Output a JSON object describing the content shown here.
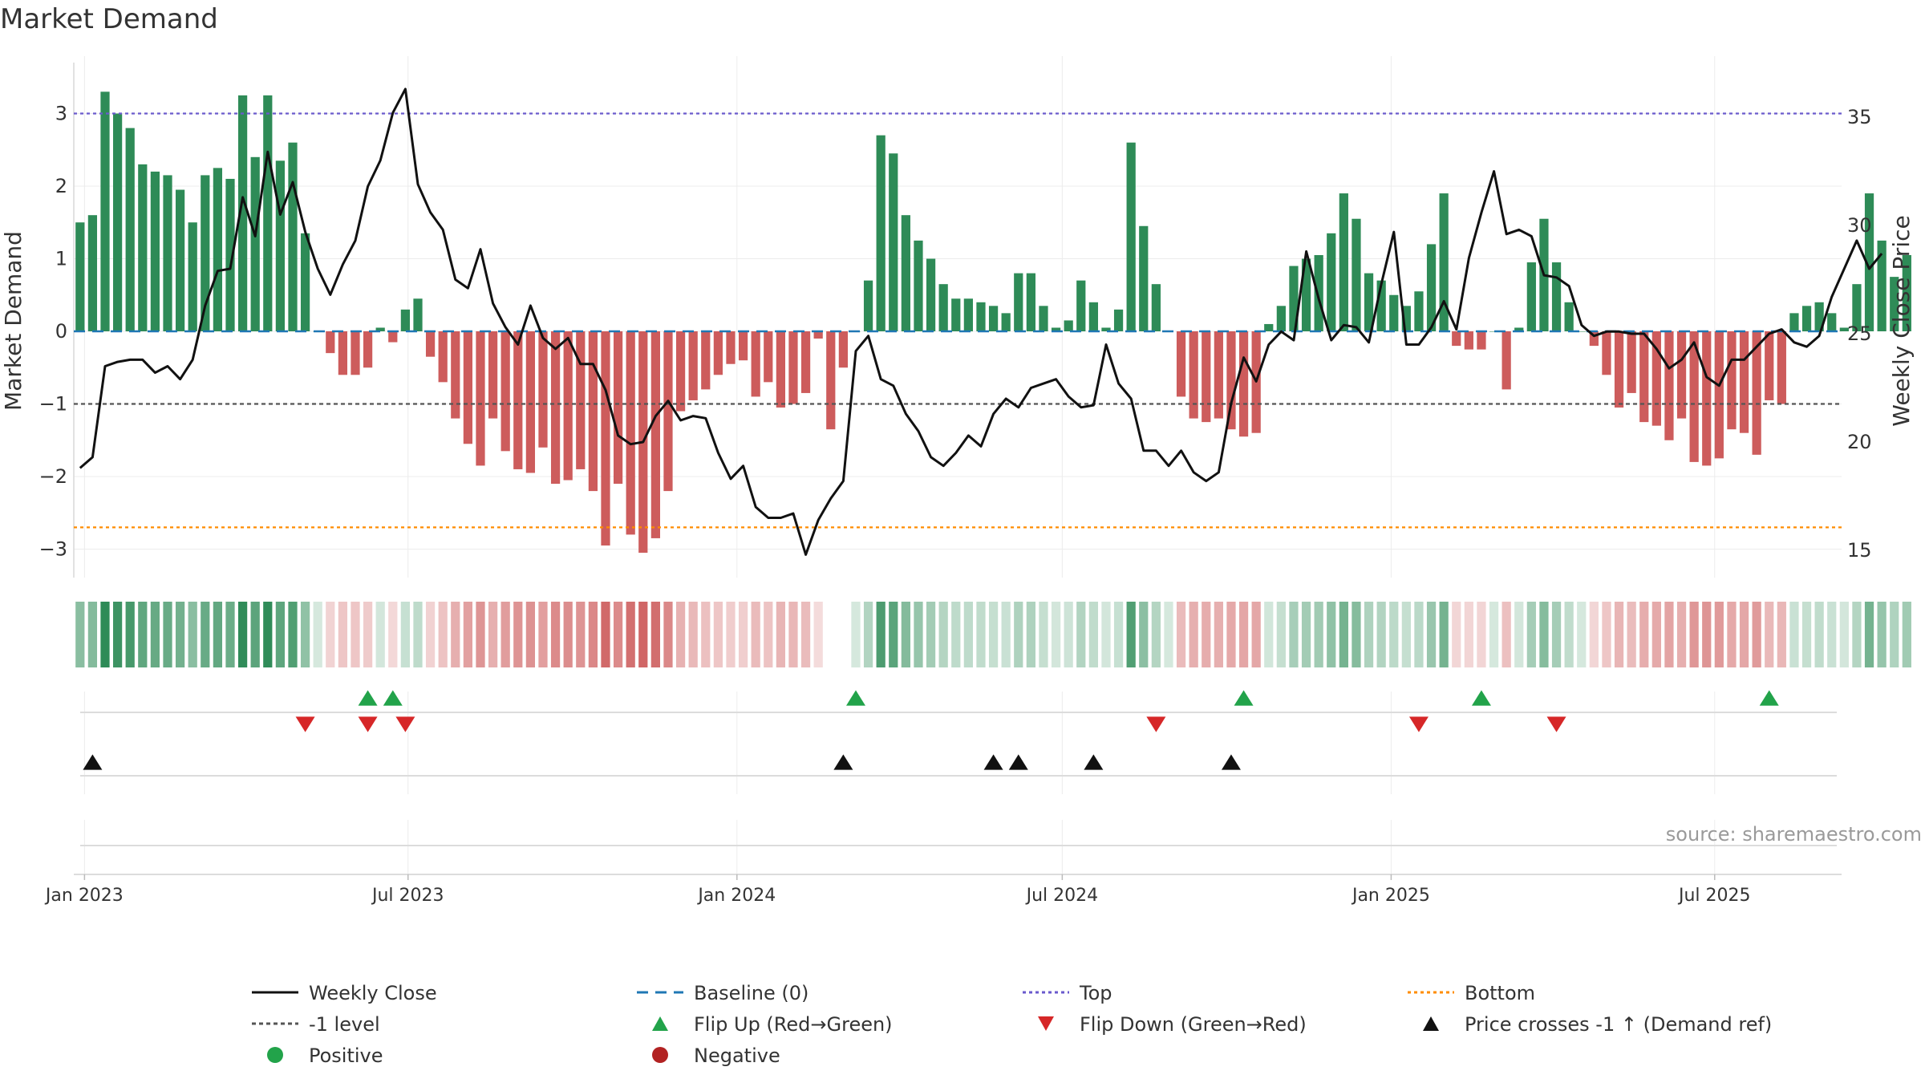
{
  "title": "Market Demand",
  "source": "source: sharemaestro.com",
  "colors": {
    "positive_bar": "#2e8b57",
    "negative_bar": "#cd5c5c",
    "close_line": "#111111",
    "baseline": "#1f77b4",
    "top": "#6a5acd",
    "bottom": "#ff8c00",
    "minus_one": "#555555",
    "flip_up": "#22a34a",
    "flip_down": "#d62728",
    "cross": "#111111",
    "positive_dot": "#22a34a",
    "negative_dot": "#b22222"
  },
  "chart_data": {
    "type": "bar+line",
    "title": "Market Demand",
    "ylabel_left": "Market Demand",
    "ylabel_right": "Weekly Close Price",
    "ylim_left": [
      -3.4,
      3.75
    ],
    "ylim_right": [
      14,
      37
    ],
    "left_ticks": [
      "3",
      "2",
      "1",
      "0",
      "−1",
      "−2",
      "−3"
    ],
    "left_tick_values": [
      3,
      2,
      1,
      0,
      -1,
      -2,
      -3
    ],
    "right_ticks": [
      "35",
      "30",
      "25",
      "20",
      "15"
    ],
    "right_tick_values": [
      35,
      30,
      25,
      20,
      15
    ],
    "x_start": "2022-12-26",
    "x_end": "2025-09-10",
    "x_tick_labels": [
      "Jan 2023",
      "Jul 2023",
      "Jan 2024",
      "Jul 2024",
      "Jan 2025",
      "Jul 2025"
    ],
    "x_tick_dates": [
      "2023-01-01",
      "2023-07-01",
      "2024-01-01",
      "2024-07-01",
      "2025-01-01",
      "2025-07-01"
    ],
    "reference_lines": {
      "top": 3.0,
      "bottom": -2.7,
      "minus_one": -1.0,
      "baseline": 0
    },
    "first_bar_date": "2022-12-26",
    "bar_interval_days": 7,
    "demand": [
      1.5,
      1.6,
      3.3,
      3.0,
      2.8,
      2.3,
      2.2,
      2.15,
      1.95,
      1.5,
      2.15,
      2.25,
      2.1,
      3.25,
      2.4,
      3.25,
      2.35,
      2.6,
      1.35,
      0.0,
      -0.3,
      -0.6,
      -0.6,
      -0.5,
      0.05,
      -0.15,
      0.3,
      0.45,
      -0.35,
      -0.7,
      -1.2,
      -1.55,
      -1.85,
      -1.2,
      -1.65,
      -1.9,
      -1.95,
      -1.6,
      -2.1,
      -2.05,
      -1.9,
      -2.2,
      -2.95,
      -2.1,
      -2.8,
      -3.05,
      -2.85,
      -2.2,
      -1.1,
      -0.95,
      -0.8,
      -0.6,
      -0.45,
      -0.4,
      -0.9,
      -0.7,
      -1.05,
      -1.0,
      -0.85,
      -0.1,
      -1.35,
      -0.5,
      0.0,
      0.7,
      2.7,
      2.45,
      1.6,
      1.25,
      1.0,
      0.65,
      0.45,
      0.45,
      0.4,
      0.35,
      0.25,
      0.8,
      0.8,
      0.35,
      0.05,
      0.15,
      0.7,
      0.4,
      0.05,
      0.3,
      2.6,
      1.45,
      0.65,
      0.0,
      -0.9,
      -1.2,
      -1.25,
      -1.2,
      -1.35,
      -1.45,
      -1.4,
      0.1,
      0.35,
      0.9,
      1.0,
      1.05,
      1.35,
      1.9,
      1.55,
      0.8,
      0.7,
      0.5,
      0.35,
      0.55,
      1.2,
      1.9,
      -0.2,
      -0.25,
      -0.25,
      0.0,
      -0.8,
      0.05,
      0.95,
      1.55,
      0.95,
      0.4,
      0.0,
      -0.2,
      -0.6,
      -1.05,
      -0.85,
      -1.25,
      -1.3,
      -1.5,
      -1.2,
      -1.8,
      -1.85,
      -1.75,
      -1.35,
      -1.4,
      -1.7,
      -0.95,
      -1.0,
      0.25,
      0.35,
      0.4,
      0.25,
      0.05,
      0.65,
      1.9,
      1.25,
      0.75,
      1.05
    ],
    "weekly_close": [
      18.8,
      19.3,
      23.5,
      23.7,
      23.8,
      23.8,
      23.2,
      23.5,
      22.9,
      23.8,
      26.3,
      27.9,
      28.0,
      31.3,
      29.5,
      33.4,
      30.5,
      32.0,
      29.7,
      28.0,
      26.8,
      28.2,
      29.3,
      31.8,
      33.0,
      35.2,
      36.3,
      31.9,
      30.6,
      29.8,
      27.5,
      27.1,
      28.9,
      26.4,
      25.3,
      24.5,
      26.3,
      24.8,
      24.3,
      24.8,
      23.6,
      23.6,
      22.4,
      20.3,
      19.9,
      20.0,
      21.2,
      21.9,
      21.0,
      21.2,
      21.1,
      19.5,
      18.3,
      18.9,
      17.0,
      16.5,
      16.5,
      16.7,
      14.8,
      16.4,
      17.4,
      18.2,
      24.2,
      24.9,
      22.9,
      22.6,
      21.3,
      20.5,
      19.3,
      18.9,
      19.5,
      20.3,
      19.8,
      21.3,
      22.0,
      21.6,
      22.5,
      22.7,
      22.9,
      22.1,
      21.6,
      21.7,
      24.5,
      22.7,
      22.0,
      19.6,
      19.6,
      18.9,
      19.6,
      18.6,
      18.2,
      18.6,
      21.8,
      23.9,
      22.8,
      24.5,
      25.1,
      24.7,
      28.8,
      26.6,
      24.7,
      25.4,
      25.3,
      24.6,
      27.3,
      29.7,
      24.5,
      24.5,
      25.3,
      26.5,
      25.2,
      28.5,
      30.6,
      32.5,
      29.6,
      29.8,
      29.5,
      27.7,
      27.6,
      27.2,
      25.4,
      24.9,
      25.1,
      25.1,
      25.0,
      25.0,
      24.3,
      23.4,
      23.8,
      24.6,
      23.0,
      22.6,
      23.8,
      23.8,
      24.4,
      25.0,
      25.2,
      24.6,
      24.4,
      24.9,
      26.7,
      28.0,
      29.3,
      28.0,
      28.7
    ]
  },
  "strip": {
    "gap_indices": [
      60,
      61
    ]
  },
  "events": {
    "flip_up_indices": [
      23,
      25,
      62,
      93,
      112,
      135
    ],
    "flip_down_indices": [
      18,
      23,
      26,
      86,
      107,
      118
    ],
    "cross_indices": [
      1,
      61,
      73,
      75,
      81,
      92
    ]
  },
  "legend": [
    {
      "label": "Weekly Close",
      "symbol": "line-solid"
    },
    {
      "label": "Baseline (0)",
      "symbol": "line-dash"
    },
    {
      "label": "Top",
      "symbol": "line-dot-top"
    },
    {
      "label": "Bottom",
      "symbol": "line-dot-bottom"
    },
    {
      "label": "-1 level",
      "symbol": "line-dot-grey"
    },
    {
      "label": "Flip Up (Red→Green)",
      "symbol": "triangle-up-green"
    },
    {
      "label": "Flip Down (Green→Red)",
      "symbol": "triangle-down-red"
    },
    {
      "label": "Price crosses -1 ↑ (Demand ref)",
      "symbol": "triangle-up-black"
    },
    {
      "label": "Positive",
      "symbol": "dot-green"
    },
    {
      "label": "Negative",
      "symbol": "dot-red"
    }
  ]
}
